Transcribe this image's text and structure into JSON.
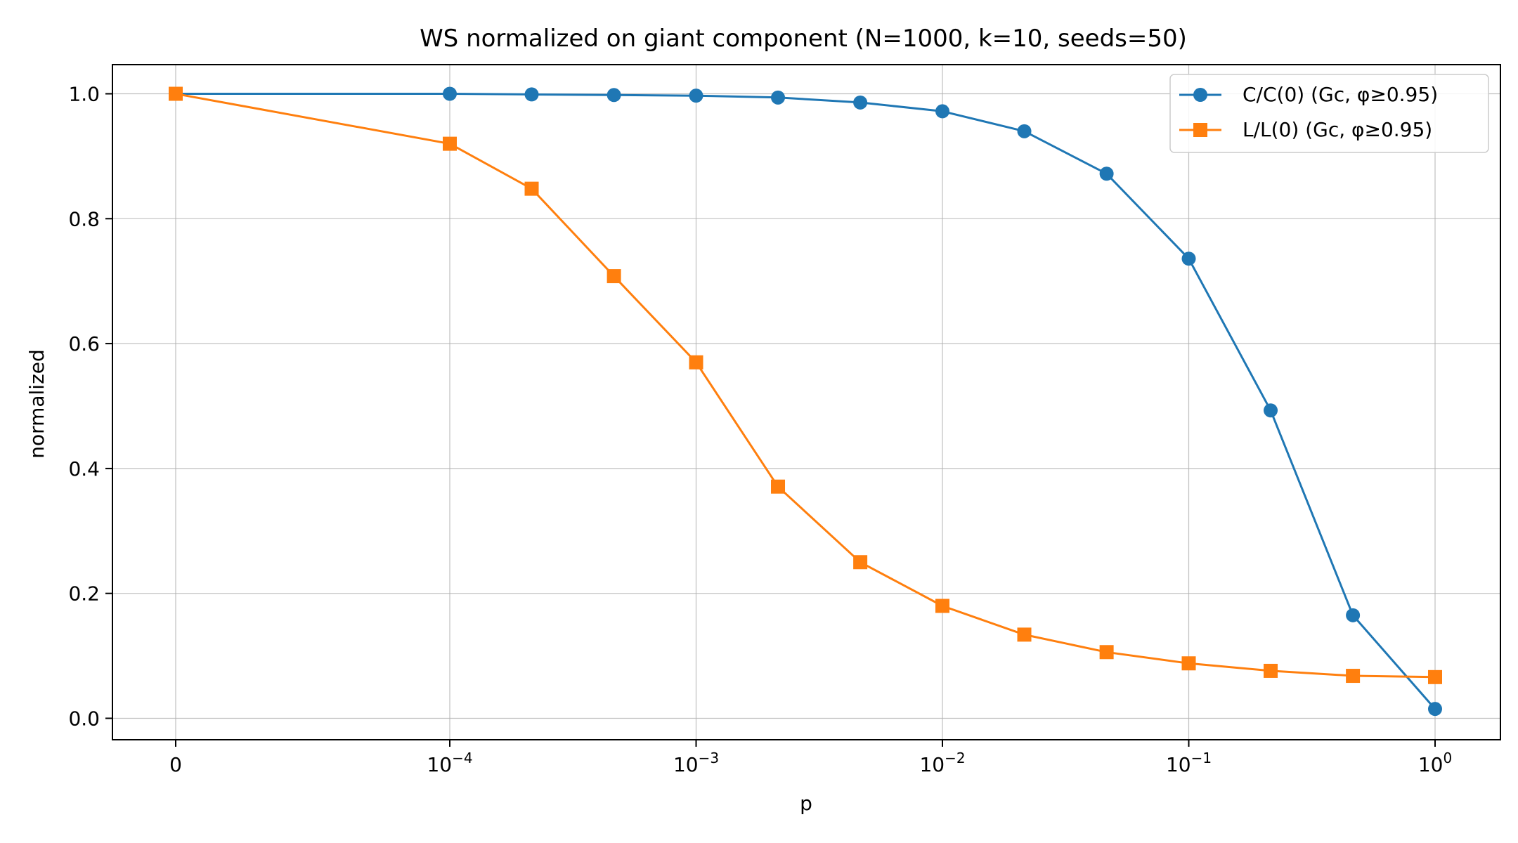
{
  "chart_data": {
    "type": "line",
    "title": "WS normalized on giant component (N=1000, k=10, seeds=50)",
    "xlabel": "p",
    "ylabel": "normalized",
    "xscale": "symlog-like (0, then log decades)",
    "x": [
      0,
      0.0001,
      0.000215,
      0.000464,
      0.001,
      0.00215,
      0.00464,
      0.01,
      0.0215,
      0.0464,
      0.1,
      0.215,
      0.464,
      1.0
    ],
    "x_tick_labels": [
      {
        "value": 0,
        "base": "0",
        "exp": ""
      },
      {
        "value": 0.0001,
        "base": "10",
        "exp": "−4"
      },
      {
        "value": 0.001,
        "base": "10",
        "exp": "−3"
      },
      {
        "value": 0.01,
        "base": "10",
        "exp": "−2"
      },
      {
        "value": 0.1,
        "base": "10",
        "exp": "−1"
      },
      {
        "value": 1,
        "base": "10",
        "exp": "0"
      }
    ],
    "y_ticks": [
      "0.0",
      "0.2",
      "0.4",
      "0.6",
      "0.8",
      "1.0"
    ],
    "ylim": [
      -0.035,
      1.05
    ],
    "grid": true,
    "legend_position": "top-right",
    "series": [
      {
        "name": "C/C(0) (Gc, φ≥0.95)",
        "color": "#1f77b4",
        "marker": "circle",
        "values": [
          1.0,
          1.0,
          0.999,
          0.998,
          0.997,
          0.994,
          0.986,
          0.972,
          0.94,
          0.872,
          0.736,
          0.493,
          0.165,
          0.015
        ]
      },
      {
        "name": "L/L(0) (Gc, φ≥0.95)",
        "color": "#ff7f0e",
        "marker": "square",
        "values": [
          1.0,
          0.92,
          0.848,
          0.708,
          0.57,
          0.371,
          0.25,
          0.18,
          0.134,
          0.106,
          0.088,
          0.076,
          0.068,
          0.066
        ]
      }
    ]
  }
}
